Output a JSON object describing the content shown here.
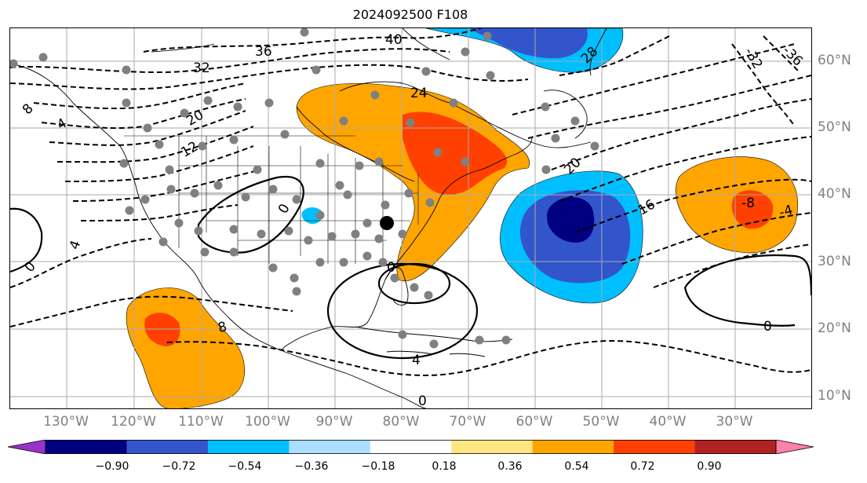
{
  "title": "2024092500 F108",
  "lon_labels": [
    "130°W",
    "120°W",
    "110°W",
    "100°W",
    "90°W",
    "80°W",
    "70°W",
    "60°W",
    "50°W",
    "40°W",
    "30°W"
  ],
  "lat_labels": [
    "60°N",
    "50°N",
    "40°N",
    "30°N",
    "20°N",
    "10°N"
  ],
  "contour_labels": [
    "40",
    "36",
    "32",
    "-32",
    "-36",
    "28",
    "24",
    "20",
    "20",
    "16",
    "12",
    "8",
    "4",
    "4",
    "-4",
    "0",
    "0",
    "0",
    "0",
    "0",
    "8",
    "4",
    "-8"
  ],
  "colorbar": {
    "ticks": [
      "−0.90",
      "−0.72",
      "−0.54",
      "−0.36",
      "−0.18",
      "0.18",
      "0.36",
      "0.54",
      "0.72",
      "0.90"
    ],
    "colors": [
      "#9933cc",
      "#000080",
      "#3355cc",
      "#00bfff",
      "#aadfff",
      "#ffffff",
      "#ffe680",
      "#ffa500",
      "#ff4000",
      "#b22222",
      "#ff80aa"
    ]
  },
  "colors": {
    "positive_1": "#ffa500",
    "positive_2": "#ff4000",
    "negative_1": "#00bfff",
    "negative_2": "#3355cc",
    "negative_3": "#000080",
    "gridline": "#aaaaaa",
    "station_dot": "#808080"
  }
}
